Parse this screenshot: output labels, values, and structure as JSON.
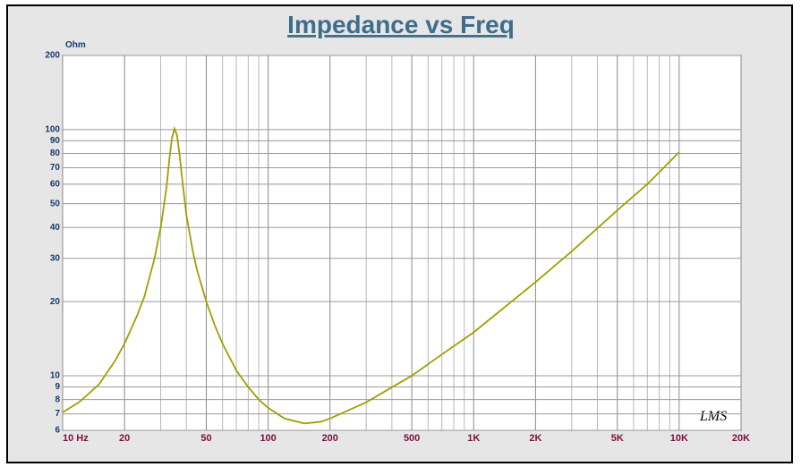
{
  "chart_data": {
    "type": "line",
    "title": "Impedance vs Freq",
    "y_unit": "Ohm",
    "annotation": "LMS",
    "log_x": true,
    "log_y": true,
    "grid": true,
    "color": "#a0a000",
    "x": [
      10,
      12,
      15,
      18,
      20,
      23,
      25,
      28,
      30,
      32,
      33,
      34,
      35,
      36,
      37,
      38,
      40,
      43,
      45,
      50,
      55,
      60,
      70,
      80,
      90,
      100,
      120,
      150,
      180,
      200,
      300,
      500,
      700,
      1000,
      2000,
      3000,
      5000,
      7000,
      10000
    ],
    "values": [
      7.1,
      7.8,
      9.2,
      11.5,
      13.5,
      17.5,
      21,
      30,
      40,
      58,
      75,
      92,
      101,
      95,
      80,
      65,
      45,
      32,
      27,
      20,
      16,
      13.5,
      10.5,
      9,
      8,
      7.4,
      6.7,
      6.4,
      6.5,
      6.7,
      7.8,
      10,
      12.2,
      15,
      24,
      32,
      47,
      60,
      81
    ],
    "xlim": [
      10,
      20000
    ],
    "ylim": [
      6,
      200
    ],
    "xticks": [
      {
        "value": 10,
        "label": "10 Hz"
      },
      20,
      50,
      100,
      200,
      500,
      {
        "value": 1000,
        "label": "1K"
      },
      {
        "value": 2000,
        "label": "2K"
      },
      {
        "value": 5000,
        "label": "5K"
      },
      {
        "value": 10000,
        "label": "10K"
      },
      {
        "value": 20000,
        "label": "20K"
      }
    ],
    "xminor": [
      30,
      40,
      60,
      70,
      80,
      90,
      300,
      400,
      600,
      700,
      800,
      900,
      3000,
      4000,
      6000,
      7000,
      8000,
      9000
    ],
    "yticks": [
      6,
      7,
      8,
      9,
      10,
      20,
      30,
      40,
      50,
      60,
      70,
      80,
      90,
      100,
      200
    ]
  }
}
